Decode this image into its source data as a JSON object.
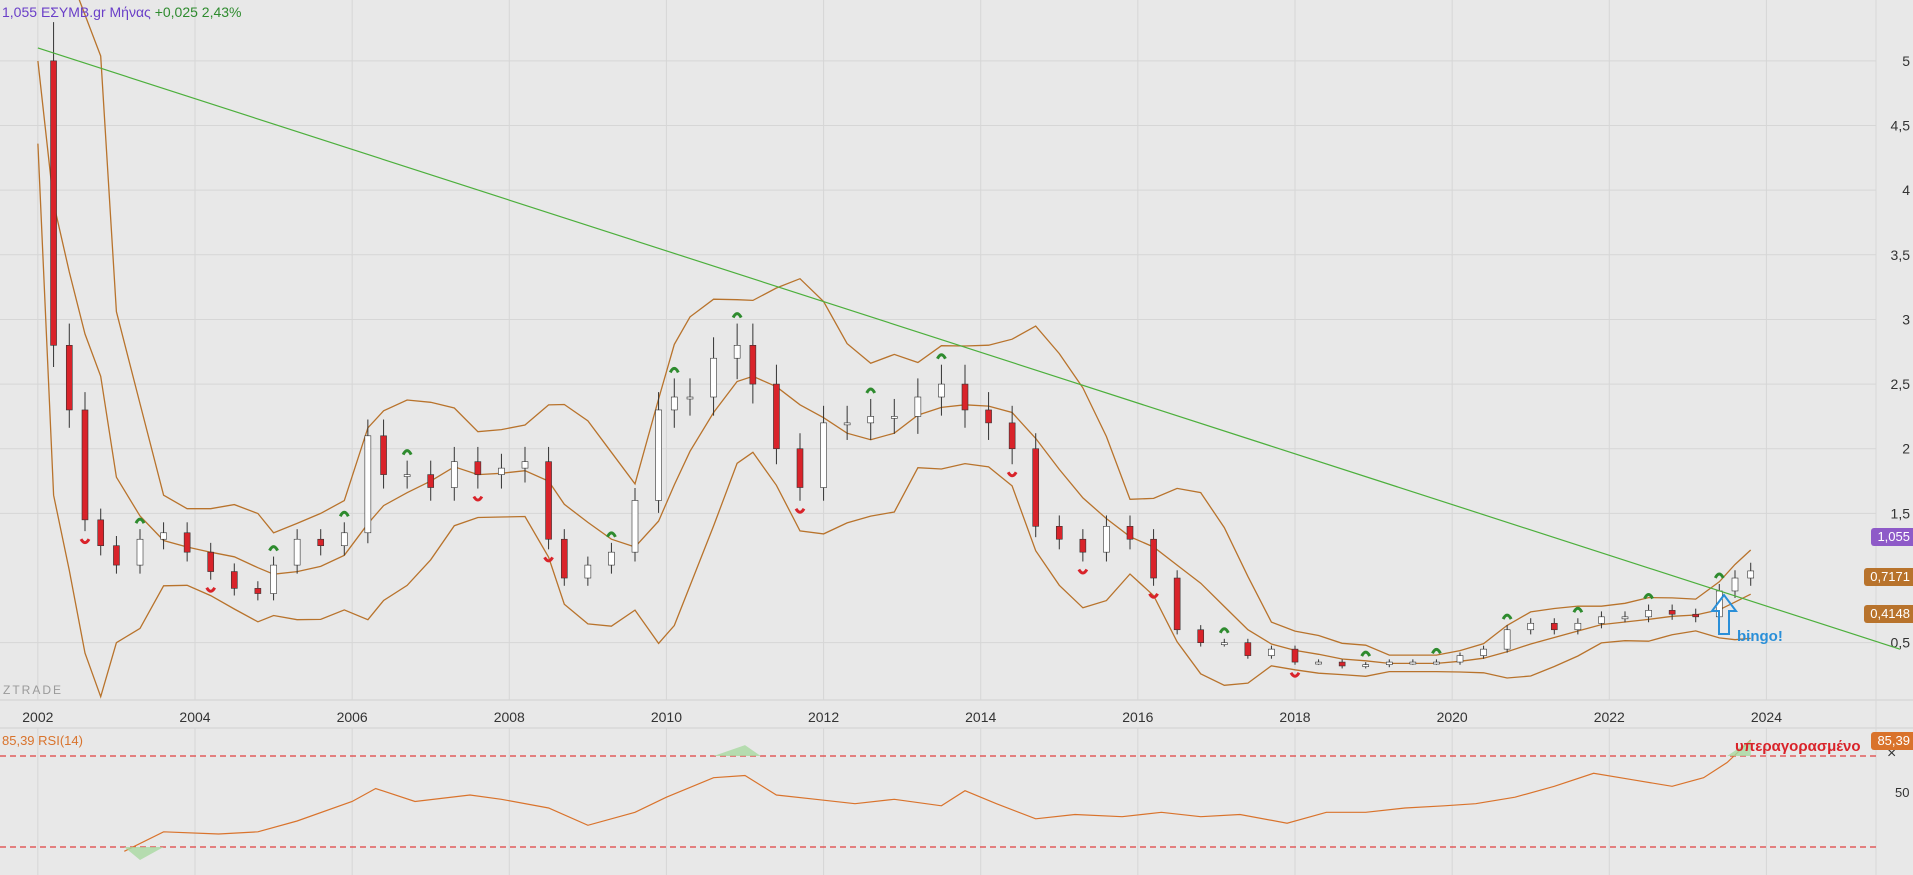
{
  "header": {
    "price": "1,055",
    "symbol": "ΕΣΥΜΒ.gr Μήνας",
    "change": "+0,025",
    "change_pct": "2,43%",
    "price_color": "#6a3fc8",
    "change_color": "#2e8b2e"
  },
  "watermark": "ZTRADE",
  "rsi_panel": {
    "label": "85,39 RSI(14)",
    "value_tag": "85,39",
    "overbought_note": "υπεραγορασμένο",
    "level_50": "50",
    "close_icon": "×"
  },
  "annotations": {
    "bingo_text": "bingo!",
    "bingo_icon": "arrow-up-outline-icon"
  },
  "price_tags": {
    "current": "1,055",
    "upper_band": "0,7171",
    "lower_band": "0,4148"
  },
  "colors": {
    "candle_up": "#ffffff",
    "candle_down": "#d9232a",
    "bollinger": "#b8732c",
    "trendline": "#4caf3c",
    "rsi_line": "#d9732c",
    "rsi_dash": "#e04040",
    "marker_up": "#2e8b2e",
    "marker_down": "#d9232a",
    "bingo": "#2a8fd8"
  },
  "chart_data": [
    {
      "type": "candlestick",
      "title": "ΕΣΥΜΒ.gr Μήνας",
      "x_ticks": [
        "2002",
        "2004",
        "2006",
        "2008",
        "2010",
        "2012",
        "2014",
        "2016",
        "2018",
        "2020",
        "2022",
        "2024"
      ],
      "y_ticks": [
        "5",
        "4,5",
        "4",
        "3,5",
        "3",
        "2,5",
        "2",
        "1,5",
        "0,5"
      ],
      "ylim": [
        0.25,
        5.2
      ],
      "xlim": [
        2001.9,
        2025.7
      ],
      "grid": true,
      "series": [
        {
          "name": "close",
          "x": [
            2002.0,
            2002.2,
            2002.4,
            2002.6,
            2002.8,
            2003.0,
            2003.3,
            2003.6,
            2003.9,
            2004.2,
            2004.5,
            2004.8,
            2005.0,
            2005.3,
            2005.6,
            2005.9,
            2006.2,
            2006.4,
            2006.7,
            2007.0,
            2007.3,
            2007.6,
            2007.9,
            2008.2,
            2008.5,
            2008.7,
            2009.0,
            2009.3,
            2009.6,
            2009.9,
            2010.1,
            2010.3,
            2010.6,
            2010.9,
            2011.1,
            2011.4,
            2011.7,
            2012.0,
            2012.3,
            2012.6,
            2012.9,
            2013.2,
            2013.5,
            2013.8,
            2014.1,
            2014.4,
            2014.7,
            2015.0,
            2015.3,
            2015.6,
            2015.9,
            2016.2,
            2016.5,
            2016.8,
            2017.1,
            2017.4,
            2017.7,
            2018.0,
            2018.3,
            2018.6,
            2018.9,
            2019.2,
            2019.5,
            2019.8,
            2020.1,
            2020.4,
            2020.7,
            2021.0,
            2021.3,
            2021.6,
            2021.9,
            2022.2,
            2022.5,
            2022.8,
            2023.1,
            2023.4,
            2023.6,
            2023.8
          ],
          "values": [
            5.0,
            2.8,
            2.3,
            1.45,
            1.25,
            1.1,
            1.3,
            1.35,
            1.2,
            1.05,
            0.92,
            0.88,
            1.1,
            1.3,
            1.25,
            1.35,
            2.1,
            1.8,
            1.8,
            1.7,
            1.9,
            1.8,
            1.85,
            1.9,
            1.3,
            1.0,
            1.1,
            1.2,
            1.6,
            2.3,
            2.4,
            2.4,
            2.7,
            2.8,
            2.5,
            2.0,
            1.7,
            2.2,
            2.2,
            2.25,
            2.25,
            2.4,
            2.5,
            2.3,
            2.2,
            2.0,
            1.4,
            1.3,
            1.2,
            1.4,
            1.3,
            1.0,
            0.6,
            0.5,
            0.5,
            0.4,
            0.45,
            0.35,
            0.35,
            0.32,
            0.33,
            0.35,
            0.35,
            0.35,
            0.4,
            0.45,
            0.6,
            0.65,
            0.6,
            0.65,
            0.7,
            0.7,
            0.75,
            0.72,
            0.7,
            0.9,
            1.0,
            1.055
          ]
        },
        {
          "name": "trendline",
          "x": [
            2002.0,
            2025.7
          ],
          "values": [
            5.1,
            0.45
          ]
        }
      ]
    },
    {
      "type": "line",
      "title": "RSI(14)",
      "ylim": [
        30,
        90
      ],
      "series": [
        {
          "name": "RSI(14)",
          "x": [
            2003.1,
            2003.6,
            2004.3,
            2004.8,
            2005.3,
            2006.0,
            2006.3,
            2006.8,
            2007.5,
            2007.9,
            2008.5,
            2009.0,
            2009.6,
            2010.0,
            2010.6,
            2011.0,
            2011.4,
            2011.9,
            2012.4,
            2012.9,
            2013.5,
            2013.8,
            2014.2,
            2014.7,
            2015.2,
            2015.8,
            2016.3,
            2016.8,
            2017.3,
            2017.9,
            2018.4,
            2018.9,
            2019.4,
            2019.9,
            2020.3,
            2020.8,
            2021.3,
            2021.8,
            2022.3,
            2022.8,
            2023.2,
            2023.5,
            2023.8
          ],
          "values": [
            34,
            43,
            42,
            43,
            48,
            57,
            63,
            57,
            60,
            58,
            54,
            46,
            52,
            59,
            68,
            69,
            60,
            58,
            56,
            58,
            55,
            62,
            56,
            49,
            51,
            50,
            52,
            50,
            51,
            47,
            52,
            52,
            54,
            55,
            56,
            59,
            64,
            70,
            67,
            64,
            68,
            75,
            85.39
          ]
        }
      ]
    }
  ]
}
